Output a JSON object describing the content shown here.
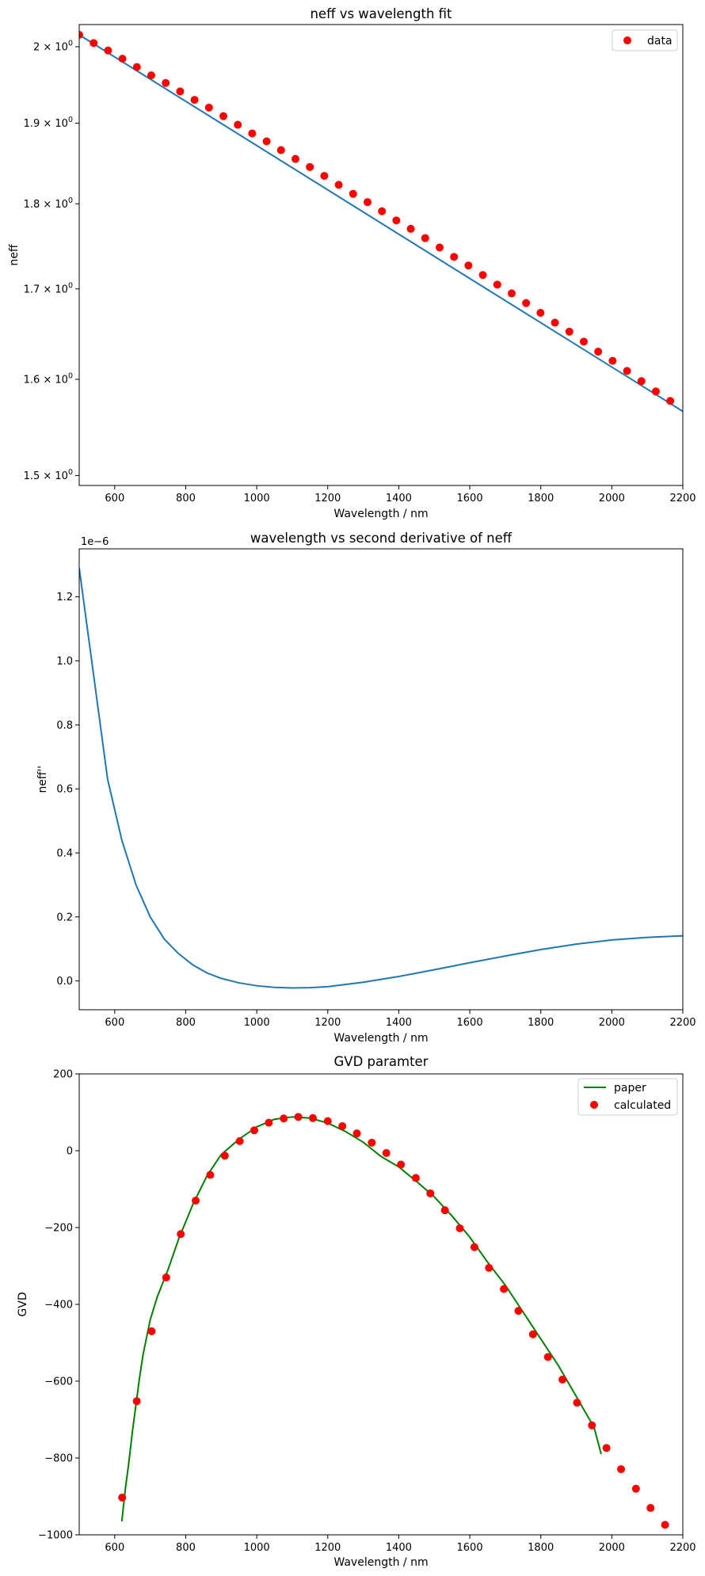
{
  "chart_data": [
    {
      "type": "line",
      "title": "neff vs wavelength fit",
      "xlabel": "Wavelength / nm",
      "ylabel": "neff",
      "xlim": [
        500,
        2200
      ],
      "ylim": [
        1.49,
        2.03
      ],
      "y_scale": "log",
      "xticks": [
        600,
        800,
        1000,
        1200,
        1400,
        1600,
        1800,
        2000,
        2200
      ],
      "yticks": [
        1.5,
        1.6,
        1.7,
        1.8,
        1.9,
        2.0
      ],
      "ytick_labels": [
        {
          "base": "1.5 × 10",
          "exp": "0"
        },
        {
          "base": "1.6 × 10",
          "exp": "0"
        },
        {
          "base": "1.7 × 10",
          "exp": "0"
        },
        {
          "base": "1.8 × 10",
          "exp": "0"
        },
        {
          "base": "1.9 × 10",
          "exp": "0"
        },
        {
          "base": "2 × 10",
          "exp": "0"
        }
      ],
      "grid": false,
      "legend_position": "top-right",
      "series": [
        {
          "kind": "line",
          "color": "#1f77b4",
          "x": [
            500,
            2200
          ],
          "y": [
            2.016,
            1.566
          ]
        },
        {
          "kind": "scatter",
          "name": "data",
          "color": "#ff0000",
          "x": [
            500,
            540.6,
            581.2,
            621.8,
            662.4,
            703,
            743.6,
            784.2,
            824.8,
            865.4,
            906,
            946.6,
            987.2,
            1027.8,
            1068.4,
            1109,
            1149.6,
            1190.2,
            1230.8,
            1271.4,
            1312,
            1352.6,
            1393.2,
            1433.8,
            1474.4,
            1515,
            1555.6,
            1596.2,
            1636.8,
            1677.4,
            1718,
            1758.6,
            1799.2,
            1839.8,
            1880.4,
            1921,
            1961.6,
            2002.2,
            2042.8,
            2083.4,
            2124,
            2164.6
          ],
          "y": [
            2.016,
            2.005,
            1.995,
            1.984,
            1.973,
            1.962,
            1.952,
            1.941,
            1.93,
            1.92,
            1.909,
            1.898,
            1.887,
            1.877,
            1.866,
            1.855,
            1.845,
            1.834,
            1.823,
            1.812,
            1.802,
            1.791,
            1.78,
            1.77,
            1.759,
            1.748,
            1.737,
            1.727,
            1.716,
            1.705,
            1.695,
            1.684,
            1.673,
            1.662,
            1.652,
            1.641,
            1.63,
            1.62,
            1.609,
            1.598,
            1.587,
            1.577
          ]
        }
      ]
    },
    {
      "type": "line",
      "title": "wavelength vs second derivative of neff",
      "xlabel": "Wavelength / nm",
      "ylabel": "neff''",
      "offset_text": "1e−6",
      "xlim": [
        500,
        2200
      ],
      "ylim": [
        -0.09,
        1.35
      ],
      "xticks": [
        600,
        800,
        1000,
        1200,
        1400,
        1600,
        1800,
        2000,
        2200
      ],
      "yticks": [
        0.0,
        0.2,
        0.4,
        0.6,
        0.8,
        1.0,
        1.2
      ],
      "ytick_labels": [
        "0.0",
        "0.2",
        "0.4",
        "0.6",
        "0.8",
        "1.0",
        "1.2"
      ],
      "grid": false,
      "series": [
        {
          "kind": "line",
          "color": "#1f77b4",
          "x": [
            500,
            540,
            580,
            620,
            660,
            700,
            740,
            780,
            820,
            860,
            900,
            950,
            1000,
            1050,
            1100,
            1150,
            1200,
            1300,
            1400,
            1500,
            1600,
            1700,
            1800,
            1900,
            2000,
            2100,
            2200
          ],
          "y": [
            1.29,
            0.96,
            0.63,
            0.44,
            0.3,
            0.2,
            0.13,
            0.085,
            0.05,
            0.025,
            0.008,
            -0.006,
            -0.015,
            -0.02,
            -0.022,
            -0.021,
            -0.018,
            -0.004,
            0.014,
            0.035,
            0.057,
            0.078,
            0.098,
            0.115,
            0.128,
            0.136,
            0.141
          ]
        }
      ]
    },
    {
      "type": "line",
      "title": "GVD paramter",
      "xlabel": "Wavelength / nm",
      "ylabel": "GVD",
      "xlim": [
        500,
        2200
      ],
      "ylim": [
        -1000,
        200
      ],
      "xticks": [
        600,
        800,
        1000,
        1200,
        1400,
        1600,
        1800,
        2000,
        2200
      ],
      "yticks": [
        -1000,
        -800,
        -600,
        -400,
        -200,
        0,
        200
      ],
      "ytick_labels": [
        "−1000",
        "−800",
        "−600",
        "−400",
        "−200",
        "0",
        "200"
      ],
      "grid": false,
      "legend_position": "top-right",
      "series": [
        {
          "kind": "line",
          "name": "paper",
          "color": "#008000",
          "x": [
            620,
            630,
            640,
            650,
            660,
            670,
            680,
            700,
            720,
            750,
            780,
            820,
            860,
            900,
            950,
            1000,
            1050,
            1100,
            1150,
            1200,
            1250,
            1300,
            1350,
            1400,
            1450,
            1500,
            1550,
            1600,
            1650,
            1700,
            1750,
            1800,
            1850,
            1900,
            1950,
            1970
          ],
          "y": [
            -965,
            -880,
            -810,
            -730,
            -660,
            -590,
            -530,
            -440,
            -380,
            -310,
            -230,
            -140,
            -65,
            -10,
            30,
            62,
            82,
            88,
            85,
            72,
            50,
            22,
            -15,
            -42,
            -80,
            -120,
            -170,
            -225,
            -290,
            -350,
            -420,
            -490,
            -560,
            -640,
            -720,
            -790
          ]
        },
        {
          "kind": "scatter",
          "name": "calculated",
          "color": "#ff0000",
          "x": [
            621,
            662,
            704,
            745,
            786,
            828,
            869,
            910,
            952,
            993,
            1034,
            1076,
            1117,
            1158,
            1200,
            1241,
            1282,
            1324,
            1365,
            1406,
            1448,
            1489,
            1530,
            1572,
            1613,
            1654,
            1696,
            1737,
            1778,
            1820,
            1861,
            1902,
            1944,
            1985,
            2026,
            2068,
            2109,
            2150
          ],
          "y": [
            -903,
            -652,
            -470,
            -330,
            -217,
            -130,
            -63,
            -13,
            25,
            53,
            73,
            84,
            88,
            85,
            77,
            64,
            45,
            21,
            -6,
            -36,
            -71,
            -111,
            -155,
            -202,
            -251,
            -305,
            -360,
            -417,
            -478,
            -537,
            -596,
            -656,
            -715,
            -774,
            -829,
            -880,
            -930,
            -974
          ]
        }
      ]
    }
  ]
}
